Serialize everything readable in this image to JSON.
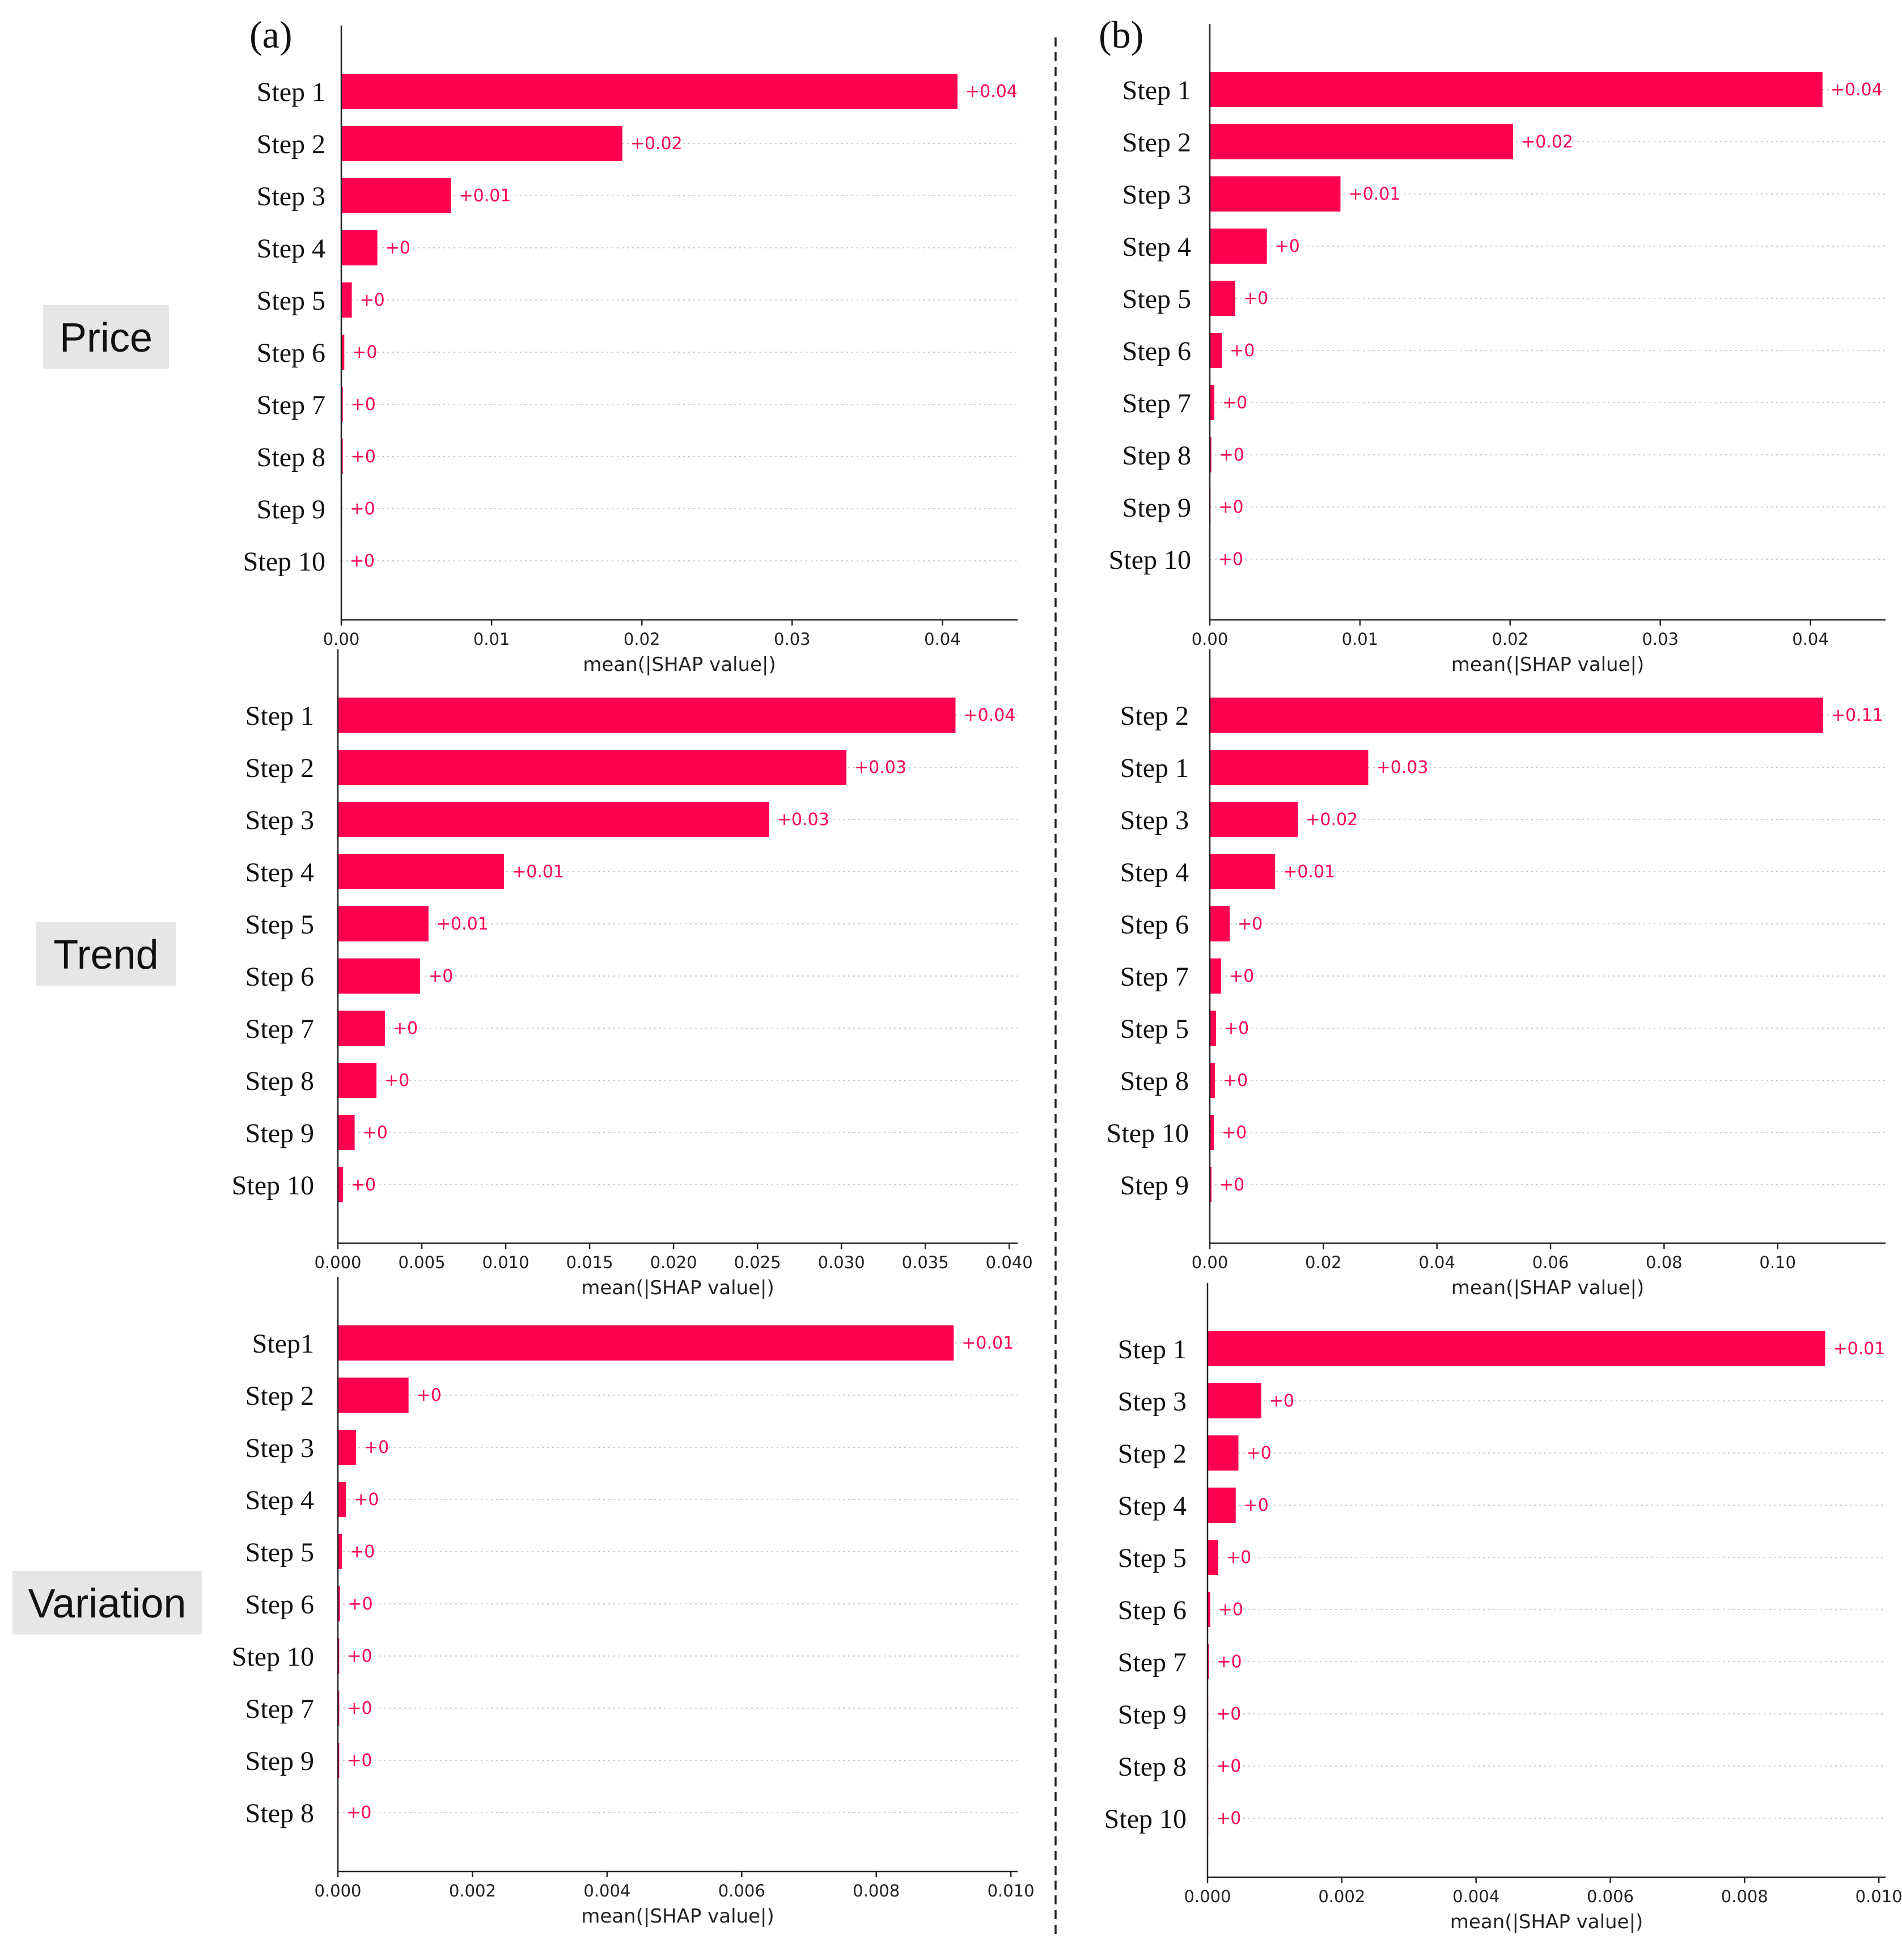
{
  "figure": {
    "bar_color": "#ff0051",
    "rows": [
      "Price",
      "Trend",
      "Variation"
    ],
    "columns": [
      "(a)",
      "(b)"
    ]
  },
  "chart_data": [
    {
      "type": "bar",
      "orientation": "horizontal",
      "panel": "(a)",
      "row": "Price",
      "categories": [
        "Step 1",
        "Step 2",
        "Step 3",
        "Step 4",
        "Step 5",
        "Step 6",
        "Step 7",
        "Step 8",
        "Step 9",
        "Step 10"
      ],
      "values": [
        0.041,
        0.0187,
        0.0073,
        0.0024,
        0.0007,
        0.0002,
        0.0001,
        0.0001,
        5e-05,
        3e-05
      ],
      "value_labels": [
        "+0.04",
        "+0.02",
        "+0.01",
        "+0",
        "+0",
        "+0",
        "+0",
        "+0",
        "+0",
        "+0"
      ],
      "xlim": [
        0,
        0.045
      ],
      "xticks": [
        0,
        0.01,
        0.02,
        0.03,
        0.04
      ],
      "xtick_labels": [
        "0.00",
        "0.01",
        "0.02",
        "0.03",
        "0.04"
      ],
      "xlabel": "mean(|SHAP value|)"
    },
    {
      "type": "bar",
      "orientation": "horizontal",
      "panel": "(b)",
      "row": "Price",
      "categories": [
        "Step 1",
        "Step 2",
        "Step 3",
        "Step 4",
        "Step 5",
        "Step 6",
        "Step 7",
        "Step 8",
        "Step 9",
        "Step 10"
      ],
      "values": [
        0.0408,
        0.0202,
        0.0087,
        0.0038,
        0.0017,
        0.0008,
        0.0003,
        0.0001,
        5e-05,
        3e-05
      ],
      "value_labels": [
        "+0.04",
        "+0.02",
        "+0.01",
        "+0",
        "+0",
        "+0",
        "+0",
        "+0",
        "+0",
        "+0"
      ],
      "xlim": [
        0,
        0.045
      ],
      "xticks": [
        0,
        0.01,
        0.02,
        0.03,
        0.04
      ],
      "xtick_labels": [
        "0.00",
        "0.01",
        "0.02",
        "0.03",
        "0.04"
      ],
      "xlabel": "mean(|SHAP value|)"
    },
    {
      "type": "bar",
      "orientation": "horizontal",
      "panel": "(a)",
      "row": "Trend",
      "categories": [
        "Step 1",
        "Step 2",
        "Step 3",
        "Step 4",
        "Step 5",
        "Step 6",
        "Step 7",
        "Step 8",
        "Step 9",
        "Step 10"
      ],
      "values": [
        0.0368,
        0.0303,
        0.0257,
        0.0099,
        0.0054,
        0.0049,
        0.0028,
        0.0023,
        0.001,
        0.0003
      ],
      "value_labels": [
        "+0.04",
        "+0.03",
        "+0.03",
        "+0.01",
        "+0.01",
        "+0",
        "+0",
        "+0",
        "+0",
        "+0"
      ],
      "xlim": [
        0,
        0.0405
      ],
      "xticks": [
        0,
        0.005,
        0.01,
        0.015,
        0.02,
        0.025,
        0.03,
        0.035,
        0.04
      ],
      "xtick_labels": [
        "0.000",
        "0.005",
        "0.010",
        "0.015",
        "0.020",
        "0.025",
        "0.030",
        "0.035",
        "0.040"
      ],
      "xlabel": "mean(|SHAP value|)"
    },
    {
      "type": "bar",
      "orientation": "horizontal",
      "panel": "(b)",
      "row": "Trend",
      "categories": [
        "Step 2",
        "Step 1",
        "Step 3",
        "Step 4",
        "Step 6",
        "Step 7",
        "Step 5",
        "Step 8",
        "Step 10",
        "Step 9"
      ],
      "values": [
        0.108,
        0.0279,
        0.0155,
        0.0115,
        0.0035,
        0.002,
        0.0011,
        0.0009,
        0.0007,
        0.0003
      ],
      "value_labels": [
        "+0.11",
        "+0.03",
        "+0.02",
        "+0.01",
        "+0",
        "+0",
        "+0",
        "+0",
        "+0",
        "+0"
      ],
      "xlim": [
        0,
        0.119
      ],
      "xticks": [
        0,
        0.02,
        0.04,
        0.06,
        0.08,
        0.1
      ],
      "xtick_labels": [
        "0.00",
        "0.02",
        "0.04",
        "0.06",
        "0.08",
        "0.10"
      ],
      "xlabel": "mean(|SHAP value|)"
    },
    {
      "type": "bar",
      "orientation": "horizontal",
      "panel": "(a)",
      "row": "Variation",
      "categories": [
        "Step1",
        "Step 2",
        "Step 3",
        "Step 4",
        "Step 5",
        "Step 6",
        "Step 10",
        "Step 7",
        "Step 9",
        "Step 8"
      ],
      "values": [
        0.00915,
        0.00105,
        0.00027,
        0.00012,
        6e-05,
        3e-05,
        2e-05,
        2e-05,
        2e-05,
        1e-05
      ],
      "value_labels": [
        "+0.01",
        "+0",
        "+0",
        "+0",
        "+0",
        "+0",
        "+0",
        "+0",
        "+0",
        "+0"
      ],
      "xlim": [
        0,
        0.0101
      ],
      "xticks": [
        0,
        0.002,
        0.004,
        0.006,
        0.008,
        0.01
      ],
      "xtick_labels": [
        "0.000",
        "0.002",
        "0.004",
        "0.006",
        "0.008",
        "0.010"
      ],
      "xlabel": "mean(|SHAP value|)"
    },
    {
      "type": "bar",
      "orientation": "horizontal",
      "panel": "(b)",
      "row": "Variation",
      "categories": [
        "Step 1",
        "Step 3",
        "Step 2",
        "Step 4",
        "Step 5",
        "Step 6",
        "Step 7",
        "Step 9",
        "Step 8",
        "Step 10"
      ],
      "values": [
        0.0092,
        0.0008,
        0.00046,
        0.00042,
        0.00016,
        4e-05,
        2e-05,
        1e-05,
        1e-05,
        1e-05
      ],
      "value_labels": [
        "+0.01",
        "+0",
        "+0",
        "+0",
        "+0",
        "+0",
        "+0",
        "+0",
        "+0",
        "+0"
      ],
      "xlim": [
        0,
        0.0101
      ],
      "xticks": [
        0,
        0.002,
        0.004,
        0.006,
        0.008,
        0.01
      ],
      "xtick_labels": [
        "0.000",
        "0.002",
        "0.004",
        "0.006",
        "0.008",
        "0.010"
      ],
      "xlabel": "mean(|SHAP value|)"
    }
  ]
}
